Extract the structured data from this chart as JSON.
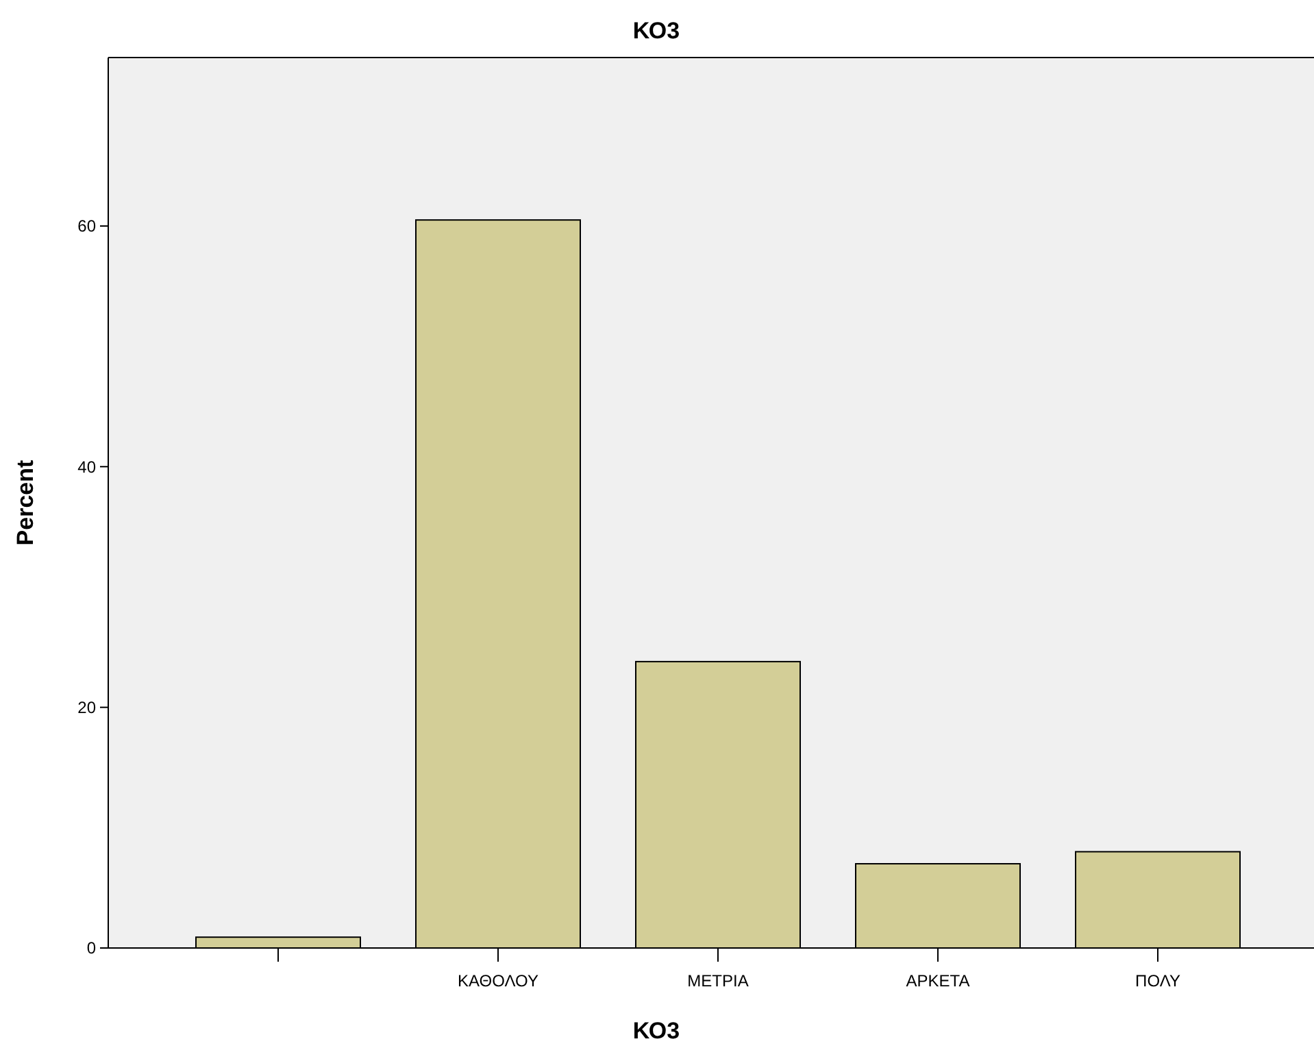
{
  "chart_data": {
    "type": "bar",
    "title": "ΚΟ3",
    "xlabel": "ΚΟ3",
    "ylabel": "Percent",
    "categories": [
      null,
      "ΚΑΘΟΛΟΥ",
      "ΜΕΤΡΙΑ",
      "ΑΡΚΕΤΑ",
      "ΠΟΛΥ"
    ],
    "values": [
      0.9,
      60.5,
      23.8,
      7.0,
      8.0
    ],
    "color": "#d3ce97",
    "ylim": [
      0,
      74
    ],
    "yticks": [
      0,
      20,
      40,
      60
    ]
  }
}
